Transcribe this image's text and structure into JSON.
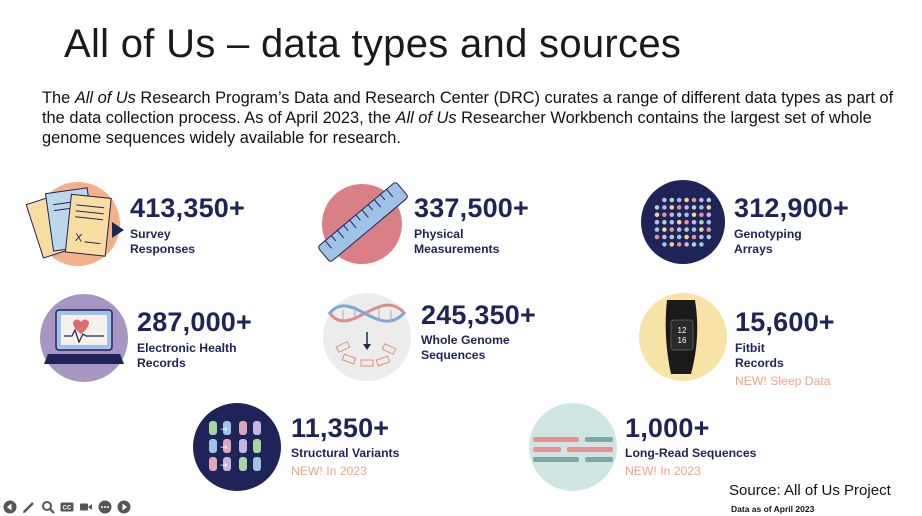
{
  "slide": {
    "title": "All of Us – data types and sources",
    "intro": {
      "p1": "The ",
      "em1": "All of Us",
      "p2": " Research Program’s Data and Research Center (DRC) curates a range of different data types as part of the data collection process. As of April 2023, the ",
      "em2": "All of Us",
      "p3": " Researcher Workbench contains the largest set of whole genome sequences widely available for research."
    },
    "stats": [
      {
        "value": "413,350+",
        "line1": "Survey",
        "line2": "Responses",
        "icon": "survey-papers-icon"
      },
      {
        "value": "337,500+",
        "line1": "Physical",
        "line2": "Measurements",
        "icon": "ruler-icon"
      },
      {
        "value": "312,900+",
        "line1": "Genotyping",
        "line2": "Arrays",
        "icon": "genotyping-array-icon"
      },
      {
        "value": "287,000+",
        "line1": "Electronic Health",
        "line2": "Records",
        "icon": "laptop-ehr-icon"
      },
      {
        "value": "245,350+",
        "line1": "Whole Genome",
        "line2": "Sequences",
        "icon": "dna-helix-icon"
      },
      {
        "value": "15,600+",
        "line1": "Fitbit",
        "line2": "Records",
        "note": "NEW! Sleep Data",
        "icon": "fitbit-icon"
      },
      {
        "value": "11,350+",
        "line1": "Structural Variants",
        "note": "NEW! In 2023",
        "icon": "structural-variants-icon"
      },
      {
        "value": "1,000+",
        "line1": "Long-Read Sequences",
        "note": "NEW! In 2023",
        "icon": "long-read-icon"
      }
    ],
    "fitbit_screen": {
      "line1": "12",
      "line2": "16"
    },
    "source": "Source: All of Us Project",
    "as_of": "Data as of April 2023"
  },
  "colors": {
    "navy": "#1e2358",
    "note_orange": "#f2a283",
    "pink_circle": "#d97f86",
    "peach_circle": "#f3b089",
    "lavender_circle": "#a896c2",
    "cream_circle": "#f7e3a6",
    "light_teal_circle": "#cfe5e3",
    "light_grey_circle": "#ececec"
  },
  "toolbar": {
    "items": [
      "back-icon",
      "pen-icon",
      "zoom-icon",
      "captions-icon",
      "video-icon",
      "more-icon",
      "forward-icon"
    ]
  }
}
